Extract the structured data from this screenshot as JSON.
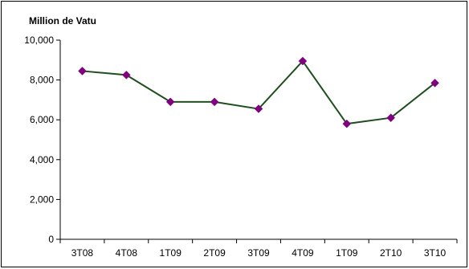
{
  "chart_data": {
    "type": "line",
    "title": "",
    "ylabel": "Million de Vatu",
    "xlabel": "",
    "categories": [
      "3T08",
      "4T08",
      "1T09",
      "2T09",
      "3T09",
      "4T09",
      "1T09",
      "2T10",
      "3T10"
    ],
    "series": [
      {
        "values": [
          8450,
          8250,
          6900,
          6900,
          6550,
          8950,
          5800,
          6100,
          7850
        ]
      }
    ],
    "ylim": [
      0,
      10000
    ],
    "yticks": [
      0,
      2000,
      4000,
      6000,
      8000,
      10000
    ],
    "ytick_labels": [
      "0",
      "2,000",
      "4,000",
      "6,000",
      "8,000",
      "10,000"
    ],
    "grid": false,
    "legend": "none",
    "colors": {
      "line": "#1f4e1f",
      "marker": "#800080",
      "axis": "#000000"
    }
  }
}
